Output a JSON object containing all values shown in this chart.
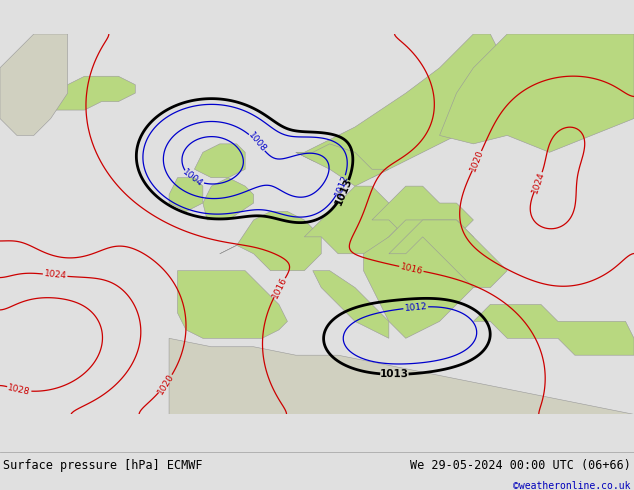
{
  "title_left": "Surface pressure [hPa] ECMWF",
  "title_right": "We 29-05-2024 00:00 UTC (06+66)",
  "copyright": "©weatheronline.co.uk",
  "bg_ocean": "#c8d8ea",
  "bg_land_europe": "#b8d880",
  "bg_land_africa": "#d0d0c0",
  "footer_bg": "#e0e0e0",
  "contour_color_red": "#cc0000",
  "contour_color_blue": "#0000cc",
  "contour_color_black": "#000000",
  "label_fontsize": 6.5,
  "footer_fontsize": 8.5,
  "figsize": [
    6.34,
    4.9
  ],
  "dpi": 100
}
